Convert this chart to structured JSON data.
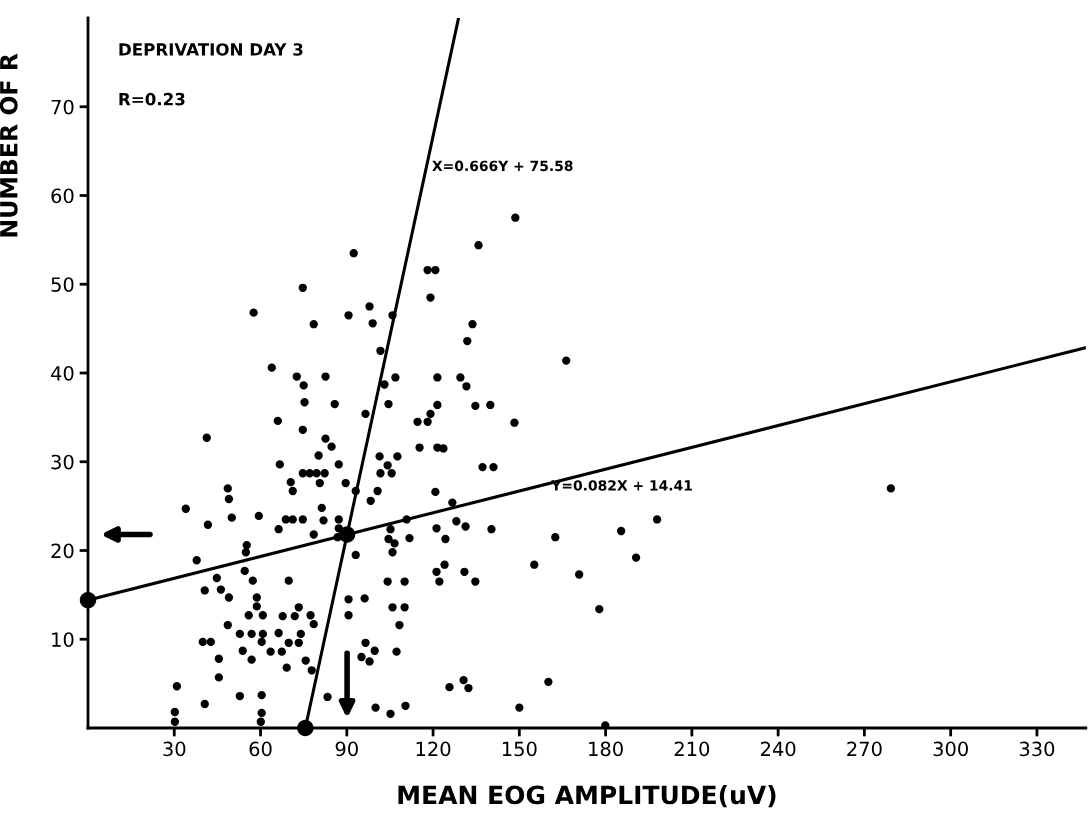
{
  "chart_data": {
    "type": "scatter",
    "xlabel": "MEAN EOG AMPLITUDE(uV)",
    "ylabel": "NUMBER OF R",
    "annotations": [
      "DEPRIVATION DAY 3",
      "R=0.23"
    ],
    "xlim": [
      0,
      347
    ],
    "ylim": [
      0,
      80
    ],
    "xticks": [
      30,
      60,
      90,
      120,
      150,
      180,
      210,
      240,
      270,
      300,
      330
    ],
    "yticks": [
      10,
      20,
      30,
      40,
      50,
      60,
      70
    ],
    "grid": false,
    "legend": false,
    "series": [
      {
        "marker": "circle",
        "color": "#000000",
        "x": [
          92.4,
          74.7,
          57.6,
          90.6,
          97.9,
          78.5,
          99.0,
          101.7,
          63.9,
          72.6,
          82.6,
          75,
          75.3,
          85.8,
          96.5,
          66,
          74.7,
          41.3,
          82.6,
          84.7,
          80.2,
          66.7,
          87.2,
          101.4,
          74.7,
          77.1,
          79.5,
          82.3,
          104.2,
          70.5,
          80.6,
          89.6,
          48.6,
          71.2,
          100.7,
          49.0,
          93.1,
          98.3,
          34.0,
          81.3,
          50,
          59.4,
          68.8,
          71.2,
          74.7,
          81.9,
          87.2,
          41.7,
          66.3,
          87.2,
          78.5,
          86.8,
          55.2,
          54.9,
          93.1,
          37.8,
          54.5,
          44.8,
          57.3,
          69.8,
          104.2,
          40.6,
          46.2,
          49,
          58.7,
          90.6,
          96.2,
          58.7,
          73.3,
          55.9,
          60.8,
          67.7,
          71.9,
          77.4,
          90.6,
          48.6,
          78.5,
          52.8,
          56.9,
          60.8,
          66.3,
          74,
          39.9,
          42.7,
          60.4,
          69.8,
          73.3,
          96.5,
          53.8,
          63.5,
          67.4,
          99.7,
          95.1,
          45.5,
          56.9,
          97.9,
          75.7,
          69.1,
          77.8,
          45.5,
          30.9,
          52.8,
          60.4,
          83.3,
          40.6,
          100,
          30.2,
          60.4,
          30.2,
          60.1,
          135.8,
          118.1,
          120.8,
          119.1,
          105.9,
          133.7,
          131.9,
          166.3,
          106.9,
          121.5,
          129.5,
          131.6,
          103.1,
          104.5,
          121.5,
          134.7,
          139.9,
          119.1,
          114.6,
          118.1,
          148.3,
          115.3,
          121.5,
          123.6,
          107.6,
          137.2,
          141,
          105.6,
          101.7,
          120.8,
          126.7,
          110.8,
          128.1,
          105.2,
          121.2,
          131.3,
          140.3,
          185.4,
          104.5,
          106.6,
          111.8,
          124.3,
          162.5,
          105.9,
          124,
          121.2,
          155.2,
          130.9,
          110.1,
          122.2,
          134.7,
          170.8,
          105.9,
          110.1,
          177.8,
          108.3,
          107.3,
          130.6,
          125.7,
          132.3,
          160.1,
          110.4,
          105.2,
          150,
          179.9,
          197.9,
          190.6,
          279.2,
          148.6
        ],
        "values": [
          53.5,
          49.6,
          46.8,
          46.5,
          47.5,
          45.5,
          45.6,
          42.5,
          40.6,
          39.6,
          39.6,
          38.6,
          36.7,
          36.5,
          35.4,
          34.6,
          33.6,
          32.7,
          32.6,
          31.7,
          30.7,
          29.7,
          29.7,
          30.6,
          28.7,
          28.7,
          28.7,
          28.7,
          29.6,
          27.7,
          27.6,
          27.6,
          27.0,
          26.7,
          26.7,
          25.8,
          26.7,
          25.6,
          24.7,
          24.8,
          23.7,
          23.9,
          23.5,
          23.5,
          23.5,
          23.4,
          23.5,
          22.9,
          22.4,
          22.5,
          21.8,
          21.5,
          20.6,
          19.8,
          19.5,
          18.9,
          17.7,
          16.9,
          16.6,
          16.6,
          16.5,
          15.5,
          15.6,
          14.7,
          14.7,
          14.5,
          14.6,
          13.7,
          13.6,
          12.7,
          12.7,
          12.6,
          12.6,
          12.7,
          12.7,
          11.6,
          11.7,
          10.6,
          10.6,
          10.6,
          10.7,
          10.6,
          9.7,
          9.7,
          9.7,
          9.6,
          9.6,
          9.6,
          8.7,
          8.6,
          8.6,
          8.7,
          8.0,
          7.8,
          7.7,
          7.5,
          7.6,
          6.8,
          6.5,
          5.7,
          4.7,
          3.6,
          3.7,
          3.5,
          2.7,
          2.3,
          1.8,
          1.7,
          0.7,
          0.7,
          54.4,
          51.6,
          51.6,
          48.5,
          46.5,
          45.5,
          43.6,
          41.4,
          39.5,
          39.5,
          39.5,
          38.5,
          38.7,
          36.5,
          36.4,
          36.3,
          36.4,
          35.4,
          34.5,
          34.5,
          34.4,
          31.6,
          31.6,
          31.5,
          30.6,
          29.4,
          29.4,
          28.7,
          28.7,
          26.6,
          25.4,
          23.5,
          23.3,
          22.4,
          22.5,
          22.7,
          22.4,
          22.2,
          21.3,
          20.8,
          21.4,
          21.3,
          21.5,
          19.8,
          18.4,
          17.6,
          18.4,
          17.6,
          16.5,
          16.5,
          16.5,
          17.3,
          13.6,
          13.6,
          13.4,
          11.6,
          8.6,
          5.4,
          4.6,
          4.5,
          5.2,
          2.5,
          1.6,
          2.3,
          0.3,
          23.5,
          19.2,
          27.0,
          57.5
        ]
      },
      {
        "type": "line",
        "name": "Y=0.082X + 14.41",
        "color": "#000000",
        "x": [
          0,
          347
        ],
        "values": [
          14.41,
          42.86
        ]
      },
      {
        "type": "line",
        "name": "X=0.666Y + 75.58",
        "color": "#000000",
        "x": [
          75.58,
          128.86
        ],
        "values": [
          0,
          80
        ]
      },
      {
        "type": "bubble",
        "marker": "circle",
        "color": "#000000",
        "x": [
          0,
          90.1,
          75.58
        ],
        "values": [
          14.41,
          21.8,
          0
        ],
        "sizes": [
          1,
          1,
          1
        ]
      }
    ]
  }
}
